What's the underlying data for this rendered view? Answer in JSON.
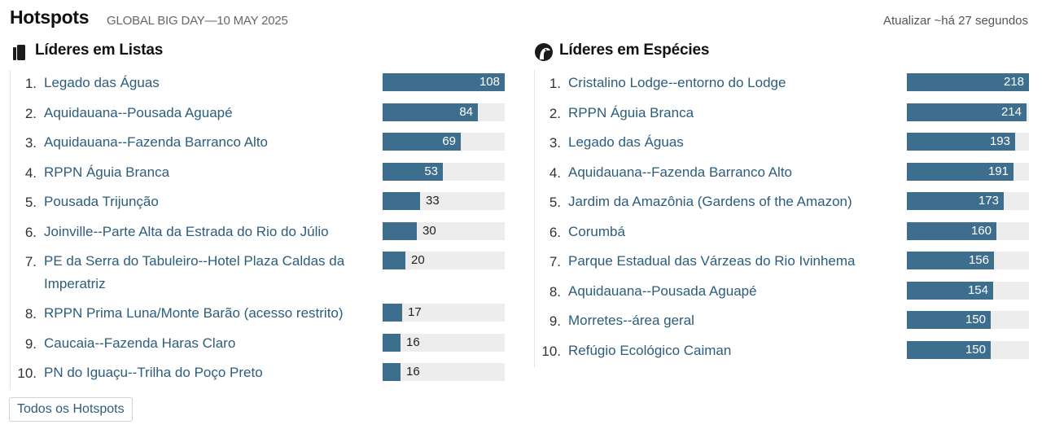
{
  "header": {
    "title": "Hotspots",
    "subtitle": "GLOBAL BIG DAY—10 MAY 2025",
    "refresh": "Atualizar ~há 27 segundos"
  },
  "lists_panel": {
    "title": "Líderes em Listas",
    "icon": "checklist-icon",
    "max": 108,
    "items": [
      {
        "rank": "1.",
        "name": "Legado das Águas",
        "value": 108
      },
      {
        "rank": "2.",
        "name": "Aquidauana--Pousada Aguapé",
        "value": 84
      },
      {
        "rank": "3.",
        "name": "Aquidauana--Fazenda Barranco Alto",
        "value": 69
      },
      {
        "rank": "4.",
        "name": "RPPN Águia Branca",
        "value": 53
      },
      {
        "rank": "5.",
        "name": "Pousada Trijunção",
        "value": 33
      },
      {
        "rank": "6.",
        "name": "Joinville--Parte Alta da Estrada do Rio do Júlio",
        "value": 30
      },
      {
        "rank": "7.",
        "name": "PE da Serra do Tabuleiro--Hotel Plaza Caldas da Imperatriz",
        "value": 20
      },
      {
        "rank": "8.",
        "name": "RPPN Prima Luna/Monte Barão (acesso restrito)",
        "value": 17
      },
      {
        "rank": "9.",
        "name": "Caucaia--Fazenda Haras Claro",
        "value": 16
      },
      {
        "rank": "10.",
        "name": "PN do Iguaçu--Trilha do Poço Preto",
        "value": 16
      }
    ]
  },
  "species_panel": {
    "title": "Líderes em Espécies",
    "icon": "bird-head-icon",
    "max": 218,
    "items": [
      {
        "rank": "1.",
        "name": "Cristalino Lodge--entorno do Lodge",
        "value": 218
      },
      {
        "rank": "2.",
        "name": "RPPN Águia Branca",
        "value": 214
      },
      {
        "rank": "3.",
        "name": "Legado das Águas",
        "value": 193
      },
      {
        "rank": "4.",
        "name": "Aquidauana--Fazenda Barranco Alto",
        "value": 191
      },
      {
        "rank": "5.",
        "name": "Jardim da Amazônia (Gardens of the Amazon)",
        "value": 173
      },
      {
        "rank": "6.",
        "name": "Corumbá",
        "value": 160
      },
      {
        "rank": "7.",
        "name": "Parque Estadual das Várzeas do Rio Ivinhema",
        "value": 156
      },
      {
        "rank": "8.",
        "name": "Aquidauana--Pousada Aguapé",
        "value": 154
      },
      {
        "rank": "9.",
        "name": "Morretes--área geral",
        "value": 150
      },
      {
        "rank": "10.",
        "name": "Refúgio Ecológico Caiman",
        "value": 150
      }
    ]
  },
  "all_button": "Todos os Hotspots",
  "colors": {
    "bar": "#3e6e8e",
    "track": "#ededed",
    "link": "#2c5d7b"
  }
}
